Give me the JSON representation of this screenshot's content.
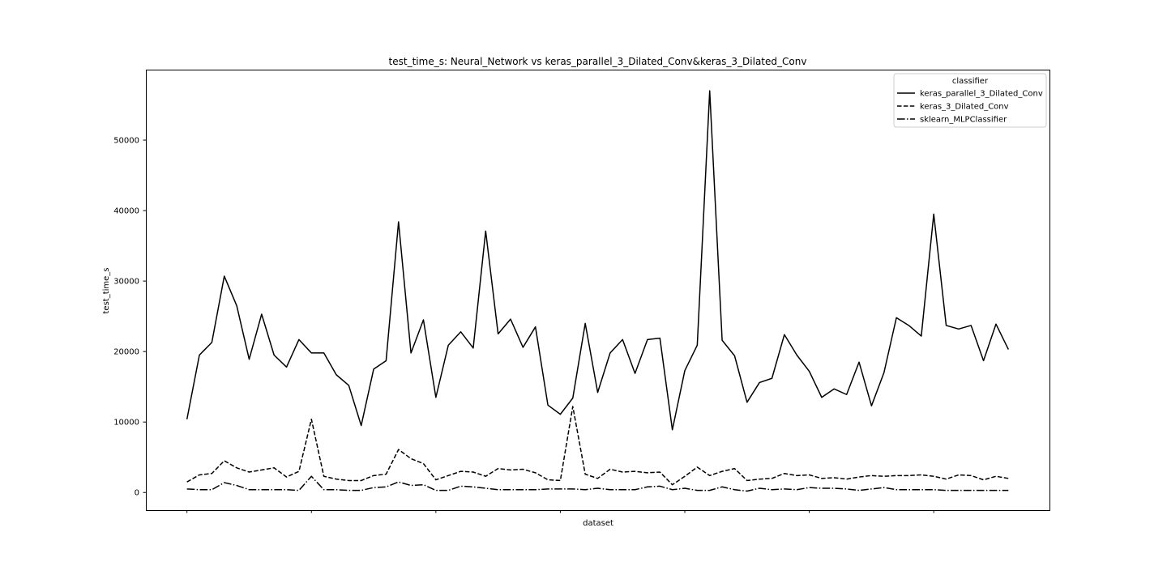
{
  "chart_data": {
    "type": "line",
    "title": "test_time_s: Neural_Network vs keras_parallel_3_Dilated_Conv&keras_3_Dilated_Conv",
    "xlabel": "dataset",
    "ylabel": "test_time_s",
    "ylim": [
      -2500,
      60000
    ],
    "yticks": [
      0,
      10000,
      20000,
      30000,
      40000,
      50000
    ],
    "xlim": [
      -3.3,
      69.3
    ],
    "x_major_ticks": [
      0,
      10,
      20,
      30,
      40,
      50,
      60
    ],
    "grid": false,
    "legend": {
      "title": "classifier",
      "placement": "top-right"
    },
    "series": [
      {
        "name": "keras_parallel_3_Dilated_Conv",
        "line_style": "solid",
        "values": [
          10400,
          19500,
          21300,
          30700,
          26500,
          18900,
          25300,
          19500,
          17800,
          21700,
          19800,
          19800,
          16700,
          15200,
          9500,
          17500,
          18700,
          38400,
          19800,
          24500,
          13500,
          20900,
          22800,
          20500,
          37100,
          22500,
          24600,
          20600,
          23500,
          12400,
          11100,
          13400,
          24000,
          14200,
          19800,
          21700,
          16900,
          21700,
          21900,
          8900,
          17300,
          20900,
          57000,
          21600,
          19400,
          12800,
          15600,
          16200,
          22400,
          19500,
          17200,
          13500,
          14700,
          13900,
          18500,
          12300,
          17000,
          24800,
          23700,
          22200,
          39500,
          23700,
          23200,
          23700,
          18700,
          23900,
          20300
        ]
      },
      {
        "name": "keras_3_Dilated_Conv",
        "line_style": "dashed",
        "values": [
          1500,
          2500,
          2700,
          4500,
          3500,
          2900,
          3200,
          3500,
          2200,
          3000,
          10400,
          2300,
          1900,
          1700,
          1700,
          2400,
          2600,
          6100,
          4800,
          4100,
          1800,
          2400,
          3000,
          2900,
          2300,
          3400,
          3200,
          3300,
          2800,
          1800,
          1700,
          12200,
          2600,
          2000,
          3300,
          2900,
          3000,
          2800,
          2900,
          1100,
          2300,
          3600,
          2400,
          3000,
          3400,
          1700,
          1900,
          2000,
          2700,
          2400,
          2500,
          2000,
          2100,
          1900,
          2200,
          2400,
          2300,
          2400,
          2400,
          2500,
          2300,
          1900,
          2500,
          2400,
          1800,
          2300,
          2000
        ]
      },
      {
        "name": "sklearn_MLPClassifier",
        "line_style": "dashdot",
        "values": [
          500,
          400,
          400,
          1400,
          1000,
          400,
          400,
          400,
          400,
          300,
          2300,
          400,
          400,
          300,
          300,
          700,
          800,
          1500,
          1000,
          1100,
          300,
          300,
          900,
          800,
          600,
          400,
          400,
          400,
          400,
          500,
          500,
          500,
          400,
          600,
          400,
          400,
          400,
          800,
          900,
          400,
          600,
          300,
          300,
          800,
          400,
          200,
          600,
          400,
          500,
          400,
          700,
          600,
          600,
          500,
          300,
          500,
          700,
          400,
          400,
          400,
          400,
          300,
          300,
          300,
          300,
          300,
          300
        ]
      }
    ]
  }
}
